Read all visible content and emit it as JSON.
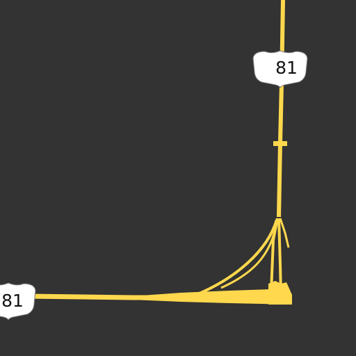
{
  "map": {
    "background_color": "#333333",
    "road_color": "#ffd84d",
    "route_shields": [
      {
        "type": "US highway shield",
        "label": "81"
      },
      {
        "type": "US highway shield",
        "label": "81"
      }
    ]
  }
}
